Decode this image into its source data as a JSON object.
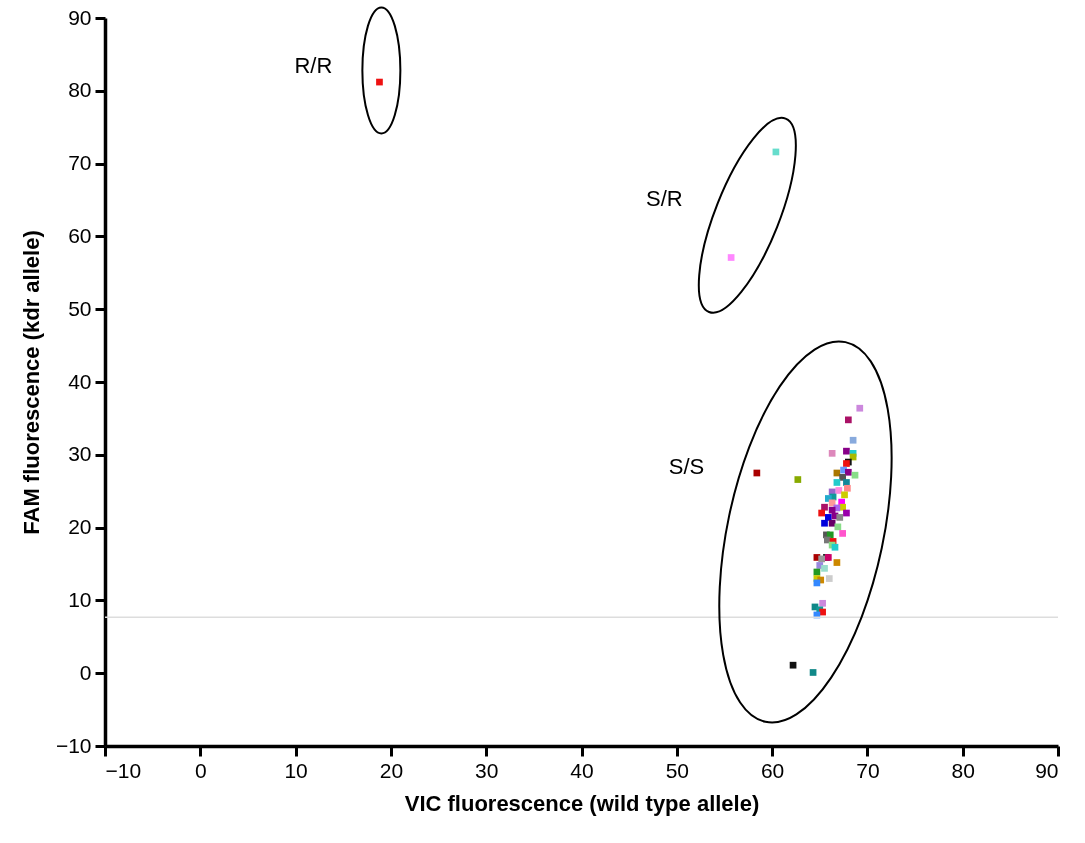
{
  "chart_data": {
    "type": "scatter",
    "xlabel": "VIC fluorescence (wild type allele)",
    "ylabel": "FAM  fluorescence (kdr allele)",
    "marker": "square",
    "xlim": [
      -10,
      90
    ],
    "ylim": [
      -10,
      90
    ],
    "xticks": [
      -10,
      0,
      10,
      20,
      30,
      40,
      50,
      60,
      70,
      80,
      90
    ],
    "yticks": [
      -10,
      0,
      10,
      20,
      30,
      40,
      50,
      60,
      70,
      80,
      90
    ],
    "x": [
      18.8,
      60.4,
      55.7,
      69.2,
      68.0,
      68.5,
      66.3,
      67.8,
      68.5,
      68.5,
      68.0,
      67.8,
      58.4,
      62.7,
      66.8,
      67.5,
      68.0,
      68.7,
      67.4,
      66.8,
      67.8,
      67.0,
      67.9,
      66.3,
      67.6,
      66.4,
      65.9,
      67.3,
      66.3,
      67.4,
      65.5,
      66.8,
      66.3,
      67.8,
      65.2,
      65.9,
      66.6,
      67.1,
      65.5,
      66.3,
      66.9,
      67.4,
      65.7,
      66.1,
      65.8,
      66.4,
      66.3,
      66.6,
      64.7,
      65.7,
      65.9,
      65.2,
      66.8,
      65.0,
      65.5,
      64.7,
      64.7,
      65.1,
      66.0,
      64.7,
      65.3,
      64.5,
      65.0,
      65.3,
      64.7,
      62.2,
      64.3
    ],
    "values": [
      81.2,
      71.6,
      57.1,
      36.4,
      34.8,
      32.0,
      30.2,
      30.5,
      30.2,
      29.7,
      29.0,
      28.8,
      27.5,
      26.6,
      27.5,
      27.9,
      27.6,
      27.2,
      26.9,
      26.2,
      26.2,
      25.1,
      25.4,
      24.9,
      24.5,
      24.2,
      24.0,
      23.5,
      23.4,
      22.8,
      22.8,
      22.7,
      22.4,
      22.0,
      22.0,
      21.4,
      21.6,
      21.4,
      20.6,
      20.6,
      20.1,
      19.2,
      19.0,
      19.0,
      18.3,
      18.1,
      17.6,
      17.3,
      15.9,
      15.9,
      15.9,
      15.7,
      15.2,
      14.8,
      14.4,
      13.9,
      13.0,
      12.8,
      13.0,
      12.4,
      9.6,
      9.1,
      8.7,
      8.4,
      8.0,
      1.1,
      0.1
    ],
    "colors": [
      "#ee1111",
      "#66ddcc",
      "#ff88ff",
      "#cc88dd",
      "#aa1166",
      "#88aadd",
      "#dd88bb",
      "#880088",
      "#22cccc",
      "#aabb00",
      "#111111",
      "#ee1111",
      "#aa0000",
      "#88aa00",
      "#aa7700",
      "#6699ff",
      "#880088",
      "#88dd88",
      "#555555",
      "#22cccc",
      "#118899",
      "#ff88dd",
      "#ff8888",
      "#9966cc",
      "#cccc00",
      "#119999",
      "#22aacc",
      "#ff00ff",
      "#ff9999",
      "#cccc00",
      "#aa1166",
      "#aa66ee",
      "#880088",
      "#9900aa",
      "#ee1111",
      "#0000dd",
      "#880088",
      "#888888",
      "#0000dd",
      "#660066",
      "#88dd88",
      "#ff55cc",
      "#555555",
      "#229922",
      "#777777",
      "#ee1111",
      "#88dd88",
      "#22cccc",
      "#aa0000",
      "#111111",
      "#cc0066",
      "#999999",
      "#cc8800",
      "#9988dd",
      "#99ddcc",
      "#229922",
      "#cccc00",
      "#cc8800",
      "#cccccc",
      "#3388ff",
      "#cc88dd",
      "#118888",
      "#119999",
      "#ee1111",
      "#3388ff",
      "#111111",
      "#118888"
    ],
    "ref_lines": [
      {
        "axis": "y",
        "value": 7.7,
        "color": "#dddddd"
      }
    ],
    "annotations": [
      "R/R",
      "S/R",
      "S/S"
    ]
  }
}
